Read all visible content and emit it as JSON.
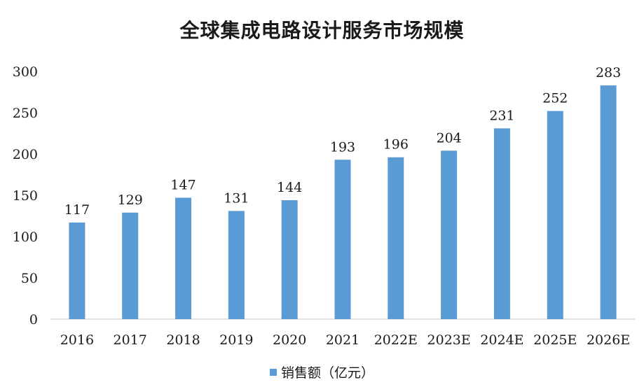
{
  "chart_data": {
    "type": "bar",
    "title": "全球集成电路设计服务市场规模",
    "categories": [
      "2016",
      "2017",
      "2018",
      "2019",
      "2020",
      "2021",
      "2022E",
      "2023E",
      "2024E",
      "2025E",
      "2026E"
    ],
    "series": [
      {
        "name": "销售额（亿元）",
        "values": [
          117,
          129,
          147,
          131,
          144,
          193,
          196,
          204,
          231,
          252,
          283
        ]
      }
    ],
    "ylim": [
      0,
      300
    ],
    "yticks": [
      0,
      50,
      100,
      150,
      200,
      250,
      300
    ],
    "grid": false,
    "legend_position": "bottom",
    "bar_color": "#5b9bd5",
    "axis_color": "#d9d9d9"
  }
}
